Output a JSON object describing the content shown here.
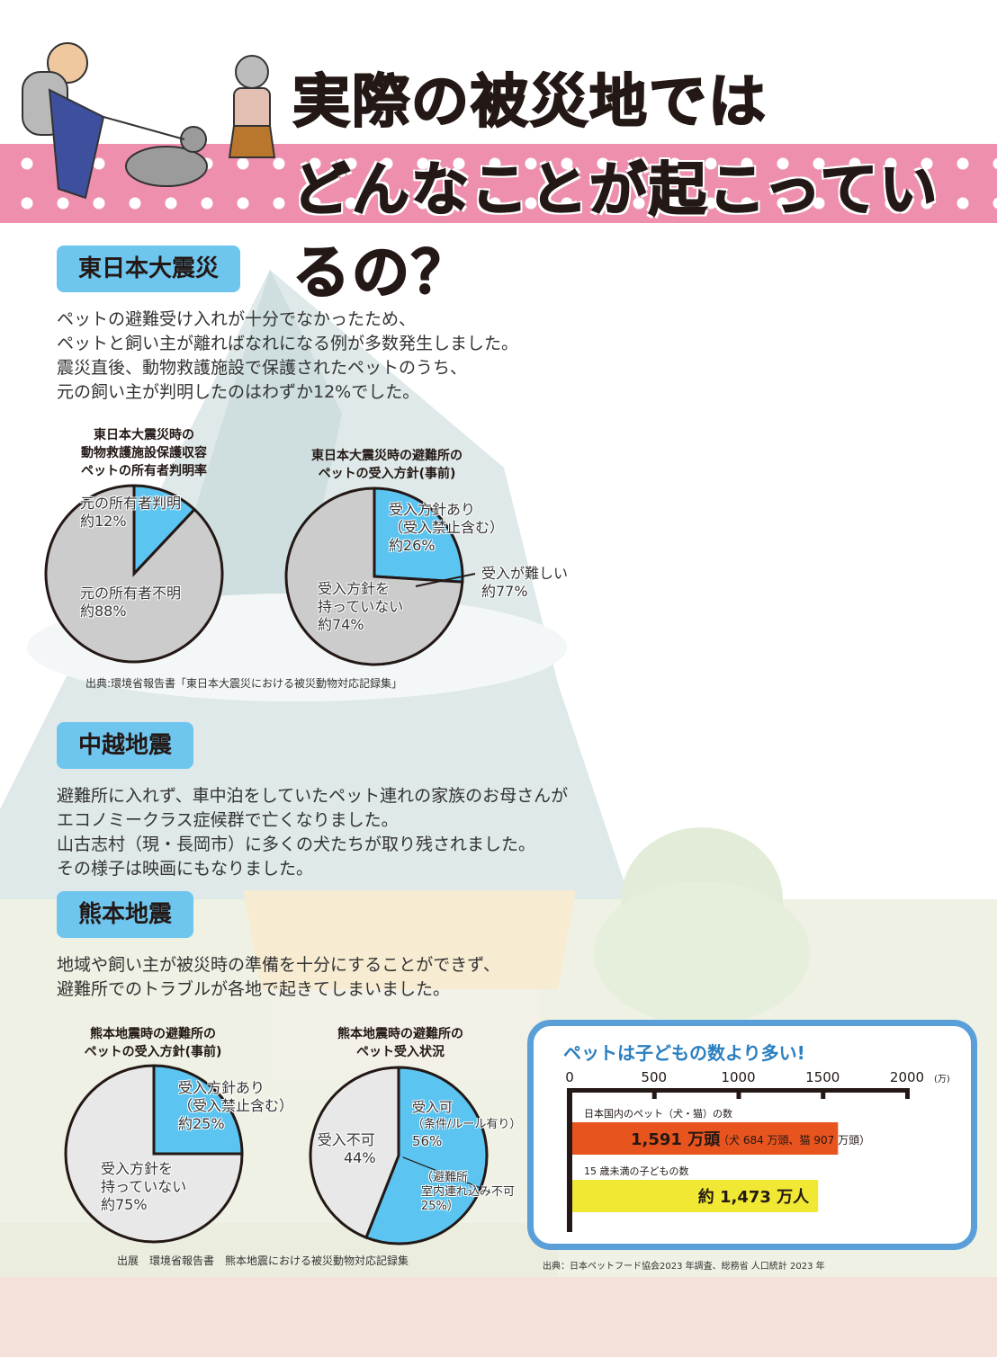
{
  "header": {
    "title_line1": "実際の被災地では",
    "title_line2": "どんなことが起こっているの？"
  },
  "sections": [
    {
      "heading": "東日本大震災",
      "text": [
        "ペットの避難受け入れが十分でなかったため、",
        "ペットと飼い主が離ればなれになる例が多数発生しました。",
        "震災直後、動物救護施設で保護されたペットのうち、",
        "元の飼い主が判明したのはわずか12%でした。"
      ],
      "source": "出典:環境省報告書「東日本大震災における被災動物対応記録集」"
    },
    {
      "heading": "中越地震",
      "text": [
        "避難所に入れず、車中泊をしていたペット連れの家族のお母さんが",
        "エコノミークラス症候群で亡くなりました。",
        "山古志村（現・長岡市）に多くの犬たちが取り残されました。",
        "その様子は映画にもなりました。"
      ]
    },
    {
      "heading": "熊本地震",
      "text": [
        "地域や飼い主が被災時の準備を十分にすることができず、",
        "避難所でのトラブルが各地で起きてしまいました。"
      ],
      "source": "出展　環境省報告書　熊本地震における被災動物対応記録集"
    }
  ],
  "colors": {
    "blue": "#5bc4f0",
    "grey": "#cccccc",
    "light_grey": "#e8e8e8",
    "orange": "#e8541e",
    "yellow": "#f0e832",
    "pink_band": "#ee8fae",
    "frame": "#5b9fd8"
  },
  "chart_data": [
    {
      "type": "pie",
      "title": [
        "東日本大震災時の",
        "動物救護施設保護収容",
        "ペットの所有者判明率"
      ],
      "slices": [
        {
          "label": [
            "元の所有者判明",
            "約12%"
          ],
          "value": 12,
          "color": "#5bc4f0"
        },
        {
          "label": [
            "元の所有者不明",
            "約88%"
          ],
          "value": 88,
          "color": "#cccccc"
        }
      ]
    },
    {
      "type": "pie",
      "title": [
        "東日本大震災時の避難所の",
        "ペットの受入方針(事前)"
      ],
      "slices": [
        {
          "label": [
            "受入方針あり",
            "（受入禁止含む）",
            "約26%"
          ],
          "value": 26,
          "color": "#5bc4f0"
        },
        {
          "label": [
            "受入方針を",
            "持っていない",
            "約74%"
          ],
          "value": 74,
          "color": "#cccccc"
        }
      ],
      "annotation": [
        "受入が難しい",
        "約77%"
      ]
    },
    {
      "type": "pie",
      "title": [
        "熊本地震時の避難所の",
        "ペットの受入方針(事前)"
      ],
      "slices": [
        {
          "label": [
            "受入方針あり",
            "（受入禁止含む）",
            "約25%"
          ],
          "value": 25,
          "color": "#5bc4f0"
        },
        {
          "label": [
            "受入方針を",
            "持っていない",
            "約75%"
          ],
          "value": 75,
          "color": "#e8e8e8"
        }
      ]
    },
    {
      "type": "pie",
      "title": [
        "熊本地震時の避難所の",
        "ペット受入状況"
      ],
      "slices": [
        {
          "label": [
            "受入可",
            "（条件/ルール有り）",
            "56%"
          ],
          "value": 56,
          "color": "#5bc4f0",
          "sub": {
            "label": [
              "（避難所",
              "室内連れ込み不可",
              "25%）"
            ],
            "value": 25
          }
        },
        {
          "label": [
            "受入不可",
            "44%"
          ],
          "value": 44,
          "color": "#e8e8e8"
        }
      ]
    },
    {
      "type": "bar",
      "orientation": "horizontal",
      "title": "ペットは子どもの数より多い!",
      "xlim": [
        0,
        2000
      ],
      "ticks": [
        "0",
        "500",
        "1000",
        "1500",
        "2000"
      ],
      "unit": "(万)",
      "bars": [
        {
          "category": "日本国内のペット（犬・猫）の数",
          "value": 1591,
          "label": "1,591 万頭",
          "detail": "（犬 684 万頭、猫 907 万頭）",
          "color": "#e8541e"
        },
        {
          "category": "15 歳未満の子どもの数",
          "value": 1473,
          "label": "約 1,473 万人",
          "color": "#f0e832"
        }
      ],
      "source": "出典：日本ペットフード協会2023 年調査、総務省 人口統計 2023 年"
    }
  ]
}
